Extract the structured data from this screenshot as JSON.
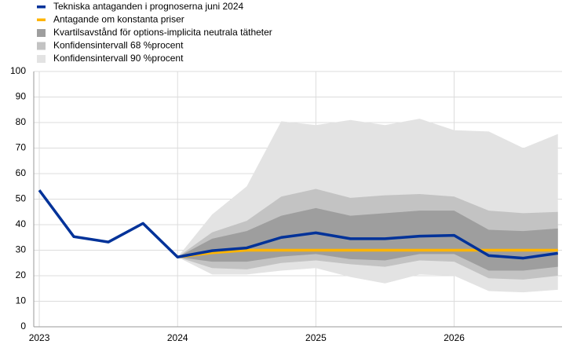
{
  "chart_data": {
    "type": "line",
    "x": [
      2023,
      2023.25,
      2023.5,
      2023.75,
      2024,
      2024.25,
      2024.5,
      2024.75,
      2025,
      2025.25,
      2025.5,
      2025.75,
      2026,
      2026.25,
      2026.5,
      2026.75
    ],
    "series": [
      {
        "name": "Tekniska antaganden i prognoserna juni 2024",
        "color": "#003299",
        "values": [
          53.5,
          35.3,
          33.2,
          40.5,
          27.3,
          29.8,
          30.9,
          35,
          36.8,
          34.5,
          34.5,
          35.5,
          35.8,
          27.9,
          26.9,
          28.8
        ]
      },
      {
        "name": "Antagande om konstanta priser",
        "color": "#ffb400",
        "values": [
          null,
          null,
          null,
          null,
          27.3,
          29,
          30,
          30,
          30,
          30,
          30,
          30,
          30,
          30,
          30,
          30
        ]
      }
    ],
    "bands": [
      {
        "name": "Kvartilsavstånd för options-implicita neutrala tätheter",
        "color": "#9e9e9e",
        "upper": [
          null,
          null,
          null,
          null,
          27.3,
          34.5,
          37.5,
          43.5,
          46.5,
          43.5,
          44.5,
          45.5,
          45.5,
          38,
          37.5,
          38.5
        ],
        "lower": [
          null,
          null,
          null,
          null,
          27.3,
          25.5,
          25.5,
          27.5,
          28.5,
          26.5,
          26,
          28.5,
          28.5,
          22,
          22,
          23.5
        ]
      },
      {
        "name": "Konfidensintervall 68 %procent",
        "color": "#c3c3c3",
        "upper": [
          null,
          null,
          null,
          null,
          27.3,
          37,
          41.5,
          51,
          54,
          50.5,
          51.5,
          52,
          51,
          45.5,
          44.5,
          45
        ],
        "lower": [
          null,
          null,
          null,
          null,
          27.3,
          23,
          22.5,
          25,
          26,
          24.5,
          23.5,
          26,
          25.5,
          19,
          18.5,
          20
        ]
      },
      {
        "name": "Konfidensintervall 90 %procent",
        "color": "#e3e3e3",
        "upper": [
          null,
          null,
          null,
          null,
          27.3,
          44,
          55,
          80.5,
          79,
          81,
          79,
          81.5,
          77,
          76.5,
          70,
          75.5
        ],
        "lower": [
          null,
          null,
          null,
          null,
          27.3,
          20.5,
          20.5,
          22,
          23,
          19.5,
          17,
          20.5,
          20,
          14,
          13.5,
          14.5
        ]
      }
    ],
    "xlim": [
      2022.96,
      2026.78
    ],
    "xticks": [
      2023,
      2024,
      2025,
      2026
    ],
    "ylim": [
      0,
      100
    ],
    "yticks": [
      0,
      10,
      20,
      30,
      40,
      50,
      60,
      70,
      80,
      90,
      100
    ],
    "grid": true,
    "legend": "top-left"
  }
}
